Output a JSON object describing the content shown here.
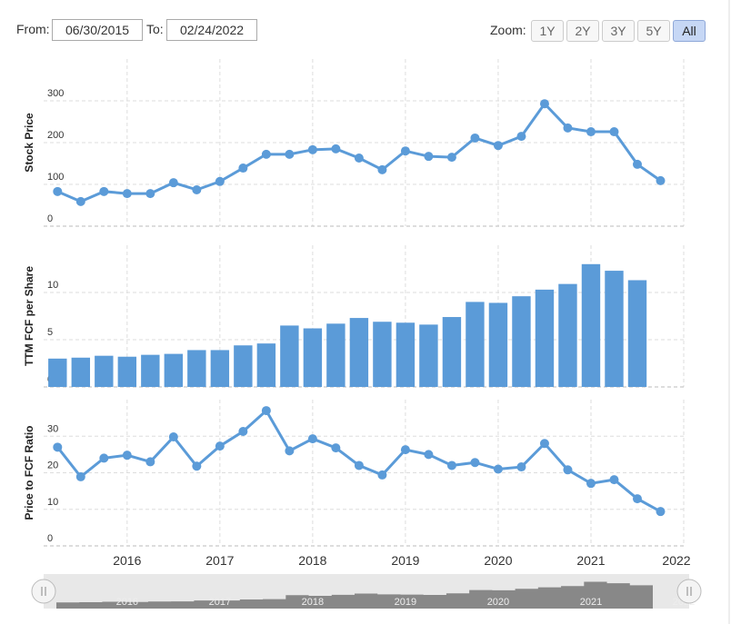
{
  "controls": {
    "from_label": "From:",
    "from_value": "06/30/2015",
    "to_label": "To:",
    "to_value": "02/24/2022",
    "zoom_label": "Zoom:",
    "zoom_buttons": [
      "1Y",
      "2Y",
      "3Y",
      "5Y",
      "All"
    ],
    "zoom_active": 4
  },
  "chart_data": [
    {
      "type": "line",
      "y_label": "Stock Price",
      "color": "#5b9bd8",
      "x": [
        2015.25,
        2015.5,
        2015.75,
        2016,
        2016.25,
        2016.5,
        2016.75,
        2017,
        2017.25,
        2017.5,
        2017.75,
        2018,
        2018.25,
        2018.5,
        2018.75,
        2019,
        2019.25,
        2019.5,
        2019.75,
        2020,
        2020.25,
        2020.5,
        2020.75,
        2021,
        2021.25,
        2021.5,
        2021.75
      ],
      "values": [
        83,
        59,
        83,
        78,
        78,
        104,
        87,
        107,
        139,
        172,
        172,
        183,
        185,
        163,
        135,
        180,
        167,
        165,
        211,
        193,
        215,
        293,
        235,
        226,
        226,
        148,
        109
      ],
      "xlim": [
        2015.1,
        2022
      ],
      "xticks": [
        2016,
        2017,
        2018,
        2019,
        2020,
        2021,
        2022
      ],
      "ylim": [
        0,
        400
      ],
      "yticks": [
        0,
        100,
        200,
        300
      ],
      "grid": true
    },
    {
      "type": "bar",
      "y_label": "TTM FCF per Share",
      "color": "#5b9bd8",
      "x": [
        2015.25,
        2015.5,
        2015.75,
        2016,
        2016.25,
        2016.5,
        2016.75,
        2017,
        2017.25,
        2017.5,
        2017.75,
        2018,
        2018.25,
        2018.5,
        2018.75,
        2019,
        2019.25,
        2019.5,
        2019.75,
        2020,
        2020.25,
        2020.5,
        2020.75,
        2021,
        2021.25,
        2021.5,
        2021.75
      ],
      "values": [
        3.0,
        3.1,
        3.3,
        3.2,
        3.4,
        3.5,
        3.9,
        3.9,
        4.4,
        4.6,
        6.5,
        6.2,
        6.7,
        7.3,
        6.9,
        6.8,
        6.6,
        7.4,
        9.0,
        8.9,
        9.6,
        10.3,
        10.9,
        13.0,
        12.3,
        11.3,
        null
      ],
      "xlim": [
        2015.1,
        2022
      ],
      "xticks": [
        2016,
        2017,
        2018,
        2019,
        2020,
        2021,
        2022
      ],
      "ylim": [
        0,
        15
      ],
      "yticks": [
        0,
        5,
        10
      ],
      "grid": true
    },
    {
      "type": "line",
      "y_label": "Price to FCF Ratio",
      "color": "#5b9bd8",
      "x": [
        2015.25,
        2015.5,
        2015.75,
        2016,
        2016.25,
        2016.5,
        2016.75,
        2017,
        2017.25,
        2017.5,
        2017.75,
        2018,
        2018.25,
        2018.5,
        2018.75,
        2019,
        2019.25,
        2019.5,
        2019.75,
        2020,
        2020.25,
        2020.5,
        2020.75,
        2021,
        2021.25,
        2021.5,
        2021.75
      ],
      "values": [
        27,
        18.9,
        24,
        24.8,
        23,
        29.8,
        21.8,
        27.3,
        31.3,
        37,
        26,
        29.3,
        26.8,
        22,
        19.4,
        26.3,
        25,
        22,
        22.8,
        21,
        21.6,
        28,
        20.8,
        17.1,
        18.1,
        12.9,
        9.4
      ],
      "xlim": [
        2015.1,
        2022
      ],
      "xticks": [
        2016,
        2017,
        2018,
        2019,
        2020,
        2021,
        2022
      ],
      "ylim": [
        0,
        40
      ],
      "yticks": [
        0,
        10,
        20,
        30
      ],
      "grid": true
    }
  ]
}
